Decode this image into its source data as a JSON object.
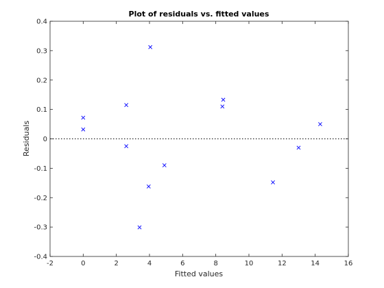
{
  "chart_data": {
    "type": "scatter",
    "title": "Plot of residuals vs. fitted values",
    "xlabel": "Fitted values",
    "ylabel": "Residuals",
    "xlim": [
      -2,
      16
    ],
    "ylim": [
      -0.4,
      0.4
    ],
    "xticks": [
      -2,
      0,
      2,
      4,
      6,
      8,
      10,
      12,
      14,
      16
    ],
    "yticks": [
      -0.4,
      -0.3,
      -0.2,
      -0.1,
      0,
      0.1,
      0.2,
      0.3,
      0.4
    ],
    "xtick_labels": [
      "-2",
      "0",
      "2",
      "4",
      "6",
      "8",
      "10",
      "12",
      "14",
      "16"
    ],
    "ytick_labels": [
      "-0.4",
      "-0.3",
      "-0.2",
      "-0.1",
      "0",
      "0.1",
      "0.2",
      "0.3",
      "0.4"
    ],
    "reference_line": {
      "y": 0,
      "style": "dotted",
      "color": "#000000"
    },
    "marker": "x",
    "marker_color": "#0000ff",
    "grid": false,
    "points": [
      {
        "x": 0.0,
        "y": 0.072
      },
      {
        "x": 0.0,
        "y": 0.032
      },
      {
        "x": 2.6,
        "y": 0.115
      },
      {
        "x": 2.6,
        "y": -0.025
      },
      {
        "x": 3.4,
        "y": -0.301
      },
      {
        "x": 3.95,
        "y": -0.162
      },
      {
        "x": 4.05,
        "y": 0.312
      },
      {
        "x": 4.9,
        "y": -0.09
      },
      {
        "x": 8.4,
        "y": 0.11
      },
      {
        "x": 8.45,
        "y": 0.133
      },
      {
        "x": 11.45,
        "y": -0.148
      },
      {
        "x": 13.0,
        "y": -0.03
      },
      {
        "x": 14.3,
        "y": 0.05
      }
    ]
  }
}
